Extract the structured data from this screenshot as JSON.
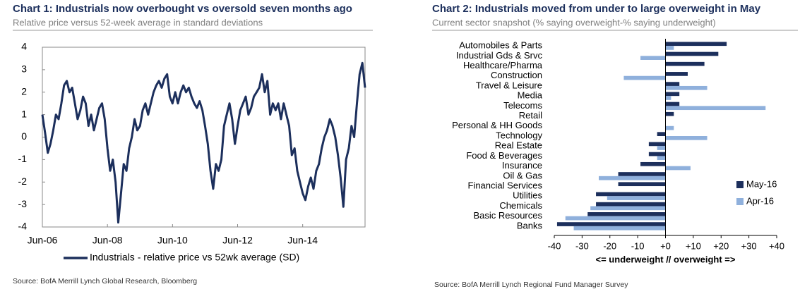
{
  "chart_data": [
    {
      "type": "line",
      "title": "Chart 1: Industrials now overbought vs oversold seven months ago",
      "subtitle": "Relative price versus 52-week average in standard deviations",
      "source": "Source: BofA Merrill Lynch Global Research, Bloomberg",
      "x": [
        "Jun-06",
        "Jul-06",
        "Aug-06",
        "Sep-06",
        "Oct-06",
        "Nov-06",
        "Dec-06",
        "Jan-07",
        "Feb-07",
        "Mar-07",
        "Apr-07",
        "May-07",
        "Jun-07",
        "Jul-07",
        "Aug-07",
        "Sep-07",
        "Oct-07",
        "Nov-07",
        "Dec-07",
        "Jan-08",
        "Feb-08",
        "Mar-08",
        "Apr-08",
        "May-08",
        "Jun-08",
        "Jul-08",
        "Aug-08",
        "Sep-08",
        "Oct-08",
        "Nov-08",
        "Dec-08",
        "Jan-09",
        "Feb-09",
        "Mar-09",
        "Apr-09",
        "May-09",
        "Jun-09",
        "Jul-09",
        "Aug-09",
        "Sep-09",
        "Oct-09",
        "Nov-09",
        "Dec-09",
        "Jan-10",
        "Feb-10",
        "Mar-10",
        "Apr-10",
        "May-10",
        "Jun-10",
        "Jul-10",
        "Aug-10",
        "Sep-10",
        "Oct-10",
        "Nov-10",
        "Dec-10",
        "Jan-11",
        "Feb-11",
        "Mar-11",
        "Apr-11",
        "May-11",
        "Jun-11",
        "Jul-11",
        "Aug-11",
        "Sep-11",
        "Oct-11",
        "Nov-11",
        "Dec-11",
        "Jan-12",
        "Feb-12",
        "Mar-12",
        "Apr-12",
        "May-12",
        "Jun-12",
        "Jul-12",
        "Aug-12",
        "Sep-12",
        "Oct-12",
        "Nov-12",
        "Dec-12",
        "Jan-13",
        "Feb-13",
        "Mar-13",
        "Apr-13",
        "May-13",
        "Jun-13",
        "Jul-13",
        "Aug-13",
        "Sep-13",
        "Oct-13",
        "Nov-13",
        "Dec-13",
        "Jan-14",
        "Feb-14",
        "Mar-14",
        "Apr-14",
        "May-14",
        "Jun-14",
        "Jul-14",
        "Aug-14",
        "Sep-14",
        "Oct-14",
        "Nov-14",
        "Dec-14",
        "Jan-15",
        "Feb-15",
        "Mar-15",
        "Apr-15",
        "May-15",
        "Jun-15",
        "Jul-15",
        "Aug-15",
        "Sep-15",
        "Oct-15",
        "Nov-15",
        "Dec-15",
        "Jan-16",
        "Feb-16",
        "Mar-16",
        "Apr-16",
        "May-16"
      ],
      "series": [
        {
          "name": "Industrials - relative price vs 52wk average (SD)",
          "color": "#1c2f5c",
          "values": [
            1.0,
            0.2,
            -0.7,
            -0.3,
            0.3,
            1.0,
            0.8,
            1.5,
            2.3,
            2.5,
            2.0,
            2.2,
            1.5,
            0.8,
            1.2,
            1.8,
            1.5,
            0.5,
            1.0,
            0.3,
            0.8,
            1.3,
            1.5,
            0.8,
            -0.5,
            -1.5,
            -1.0,
            -2.0,
            -3.8,
            -2.5,
            -1.2,
            -1.5,
            -0.5,
            0.0,
            0.8,
            0.3,
            0.5,
            1.2,
            1.5,
            1.0,
            1.5,
            2.0,
            2.3,
            2.5,
            2.2,
            2.6,
            2.8,
            1.8,
            1.5,
            2.0,
            1.5,
            2.0,
            2.3,
            2.0,
            2.2,
            1.8,
            1.5,
            1.3,
            1.6,
            1.2,
            0.5,
            -0.3,
            -1.5,
            -2.3,
            -1.2,
            -1.5,
            -1.0,
            0.5,
            1.0,
            1.5,
            0.8,
            -0.3,
            0.5,
            1.2,
            1.5,
            1.8,
            1.0,
            1.3,
            1.8,
            2.0,
            2.2,
            2.8,
            2.0,
            2.5,
            1.0,
            1.5,
            1.2,
            1.5,
            0.8,
            1.5,
            1.0,
            0.5,
            -0.8,
            -0.5,
            -1.5,
            -2.0,
            -2.5,
            -2.8,
            -2.2,
            -1.8,
            -2.3,
            -1.5,
            -1.2,
            -0.5,
            0.0,
            0.3,
            0.8,
            0.5,
            0.0,
            -0.8,
            -1.8,
            -3.1,
            -1.0,
            -0.5,
            0.5,
            0.0,
            1.5,
            2.8,
            3.3,
            2.2
          ]
        }
      ],
      "xticks": [
        "Jun-06",
        "Jun-08",
        "Jun-10",
        "Jun-12",
        "Jun-14"
      ],
      "ylim": [
        -4,
        4
      ],
      "yticks": [
        -4,
        -3,
        -2,
        -1,
        0,
        1,
        2,
        3,
        4
      ],
      "grid": false
    },
    {
      "type": "hbar",
      "title": "Chart 2: Industrials moved from under to large overweight in May",
      "subtitle": "Current sector snapshot (% saying overweight-% saying underweight)",
      "source": "Source: BofA Merrill Lynch Regional Fund Manager Survey",
      "xlabel": "<= underweight  // overweight =>",
      "categories": [
        "Automobiles & Parts",
        "Industrial Gds & Srvc",
        "Healthcare/Pharma",
        "Construction",
        "Travel & Leisure",
        "Media",
        "Telecoms",
        "Retail",
        "Personal & HH Goods",
        "Technology",
        "Real Estate",
        "Food & Beverages",
        "Insurance",
        "Oil & Gas",
        "Financial Services",
        "Utilities",
        "Chemicals",
        "Basic Resources",
        "Banks"
      ],
      "series": [
        {
          "name": "May-16",
          "color": "#1c2f5c",
          "values": [
            22,
            19,
            14,
            8,
            5,
            5,
            5,
            3,
            0,
            -3,
            -6,
            -6,
            -9,
            -17,
            -17,
            -25,
            -25,
            -28,
            -39
          ]
        },
        {
          "name": "Apr-16",
          "color": "#8fb0dc",
          "values": [
            3,
            -9,
            0,
            -15,
            15,
            2,
            36,
            0,
            3,
            15,
            -3,
            -3,
            9,
            -24,
            0,
            -21,
            -27,
            -36,
            -33
          ]
        }
      ],
      "xlim": [
        -40,
        40
      ],
      "xticks": [
        -40,
        -30,
        -20,
        -10,
        {
          "value": 0,
          "label": "+0"
        },
        {
          "value": 10,
          "label": "+10"
        },
        {
          "value": 20,
          "label": "+20"
        },
        {
          "value": 30,
          "label": "+30"
        },
        {
          "value": 40,
          "label": "+40"
        }
      ],
      "legend": "right",
      "grid": false
    }
  ]
}
